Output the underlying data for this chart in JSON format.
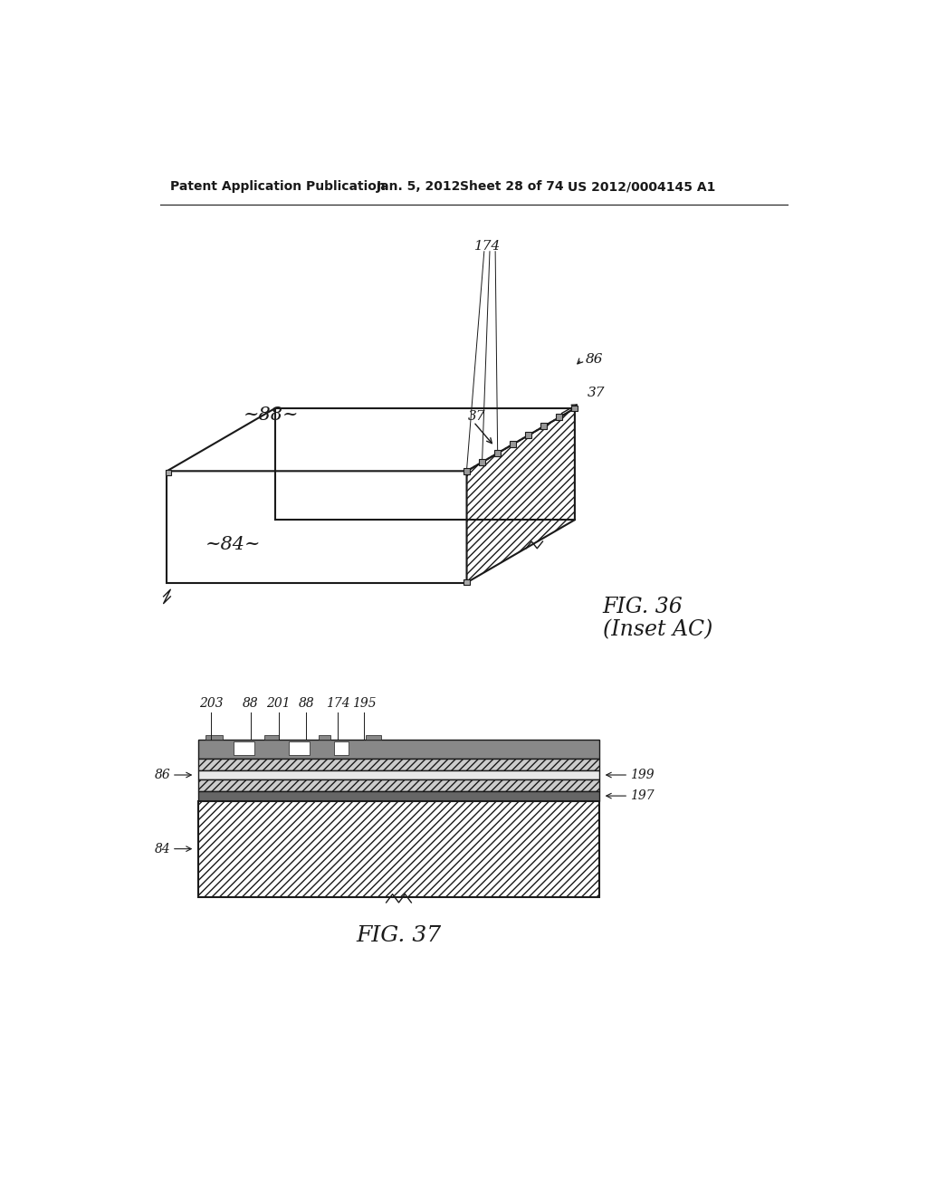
{
  "bg_color": "#ffffff",
  "header_text": "Patent Application Publication",
  "header_date": "Jan. 5, 2012",
  "header_sheet": "Sheet 28 of 74",
  "header_patent": "US 2012/0004145 A1",
  "fig36_title": "FIG. 36",
  "fig36_subtitle": "(Inset AC)",
  "fig37_title": "FIG. 37",
  "label_174": "174",
  "label_37a": "37",
  "label_37b": "37",
  "label_86": "86",
  "label_88": "~88~",
  "label_84": "~84~",
  "label_203": "203",
  "label_88b": "88",
  "label_201": "201",
  "label_88c": "88",
  "label_174b": "174",
  "label_195": "195",
  "label_199": "199",
  "label_197": "197",
  "label_86b": "86",
  "label_84b": "84"
}
